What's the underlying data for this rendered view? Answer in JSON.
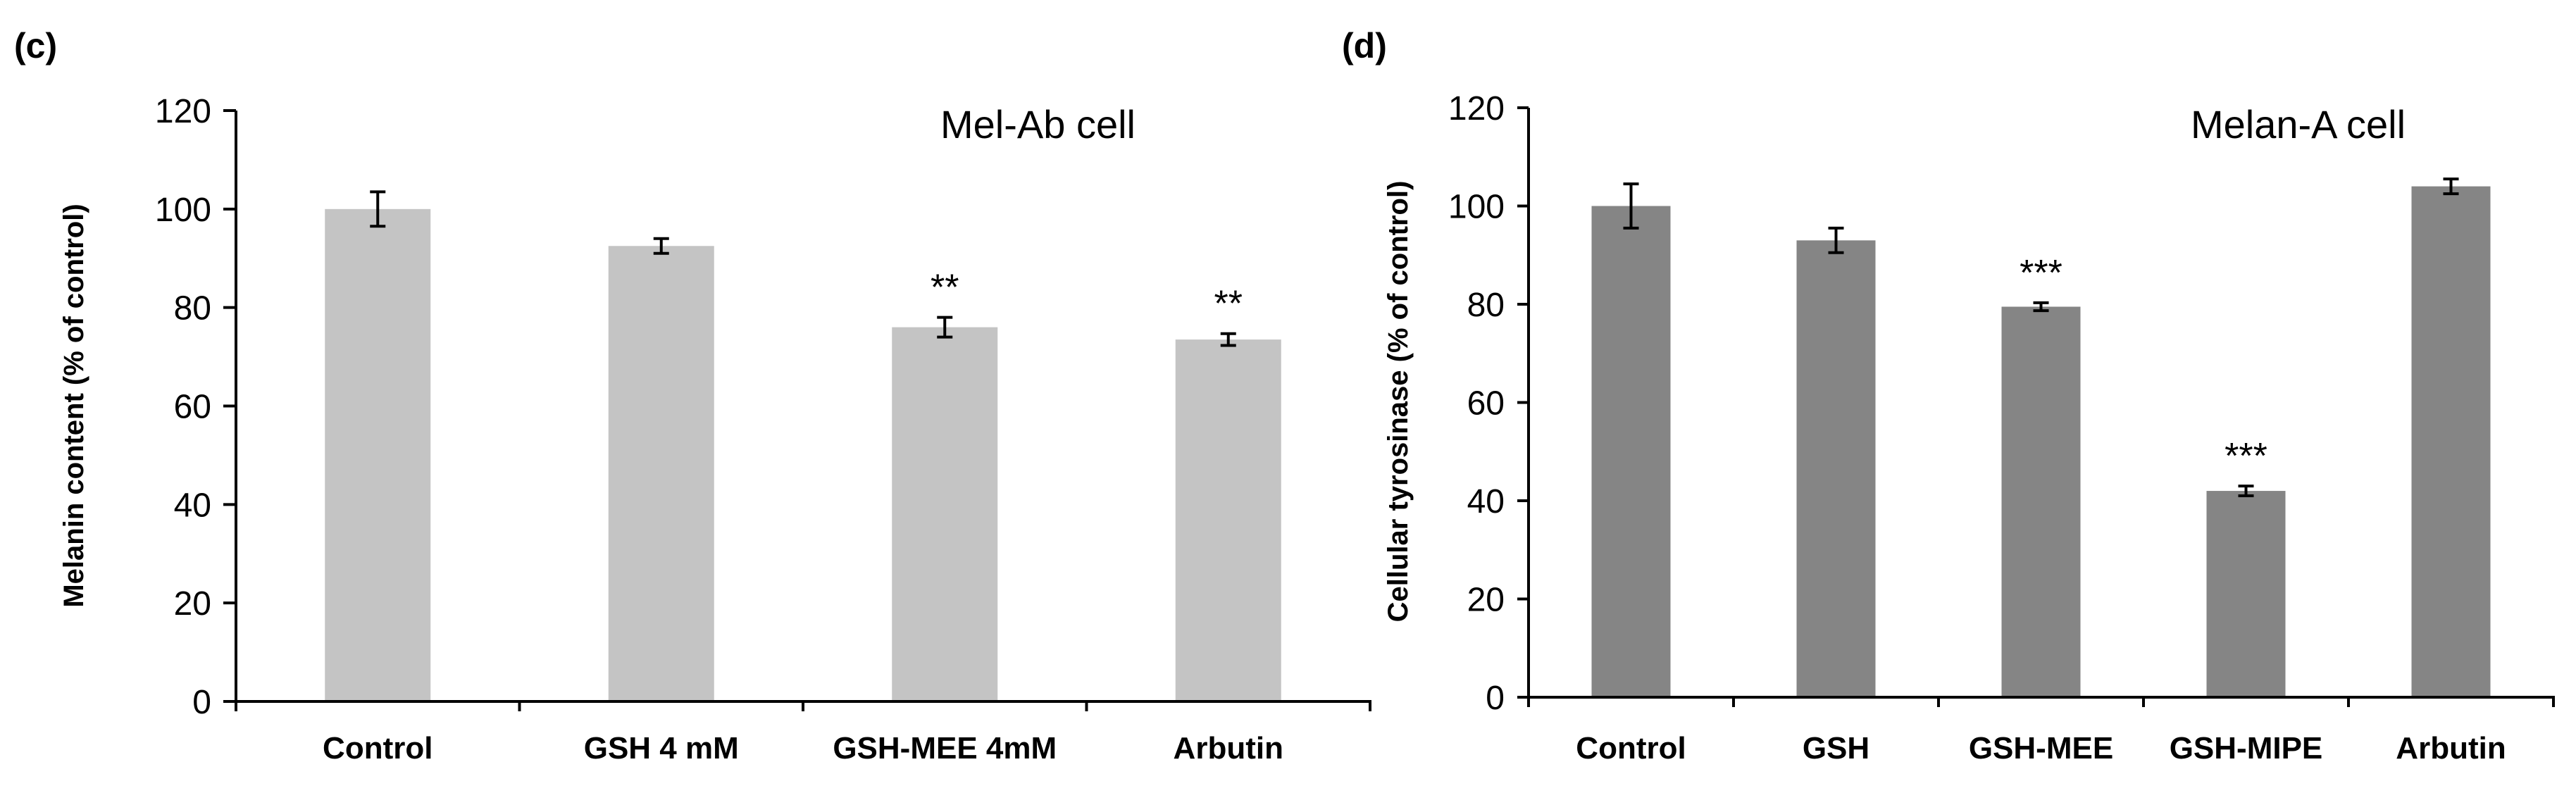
{
  "chart_data": [
    {
      "type": "bar",
      "panel": "(c)",
      "title": "Mel-Ab cell",
      "ylabel": "Melanin content (% of control)",
      "xlabel": "",
      "ylim": [
        0,
        120
      ],
      "yticks": [
        "0",
        "20",
        "40",
        "60",
        "80",
        "100",
        "120"
      ],
      "categories": [
        "Control",
        "GSH 4 mM",
        "GSH-MEE 4mM",
        "Arbutin"
      ],
      "values": [
        100,
        92.5,
        76,
        73.5
      ],
      "errors": [
        3.5,
        1.5,
        2,
        1.2
      ],
      "annotations": [
        "",
        "",
        "**",
        "**"
      ],
      "bar_color": "#c4c4c4",
      "grid": false
    },
    {
      "type": "bar",
      "panel": "(d)",
      "title": "Melan-A cell",
      "ylabel": "Cellular tyrosinase (% of control)",
      "xlabel": "",
      "ylim": [
        0,
        120
      ],
      "yticks": [
        "0",
        "20",
        "40",
        "60",
        "80",
        "100",
        "120"
      ],
      "categories": [
        "Control",
        "GSH",
        "GSH-MEE",
        "GSH-MIPE",
        "Arbutin"
      ],
      "values": [
        100,
        93,
        79.5,
        42,
        104
      ],
      "errors": [
        4.5,
        2.5,
        0.8,
        1,
        1.5
      ],
      "annotations": [
        "",
        "",
        "***",
        "***",
        ""
      ],
      "bar_color": "#858585",
      "grid": false
    }
  ]
}
